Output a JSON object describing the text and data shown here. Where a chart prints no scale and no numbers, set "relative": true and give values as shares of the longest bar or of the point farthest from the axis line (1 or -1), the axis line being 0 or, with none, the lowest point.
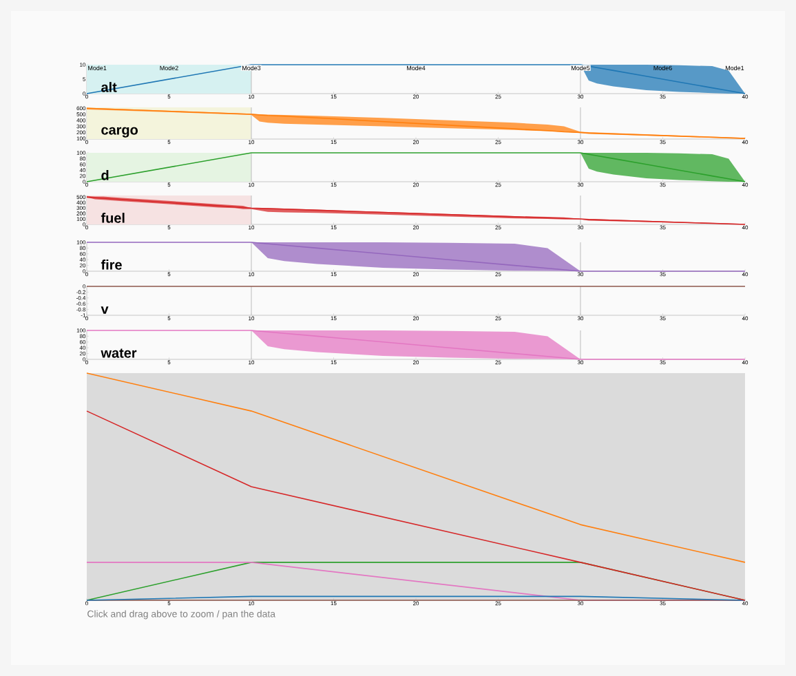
{
  "chart_data": [
    {
      "type": "line",
      "title": "alt",
      "xlim": [
        0,
        40
      ],
      "xticks": [
        0,
        5,
        10,
        15,
        20,
        25,
        30,
        35,
        40
      ],
      "ylim": [
        0,
        10
      ],
      "yticks": [
        0,
        5,
        10
      ],
      "series": [
        {
          "color": "#1f77b4",
          "x": [
            0,
            10,
            30,
            30.5,
            31,
            32,
            34,
            36,
            38,
            39,
            40
          ],
          "values": [
            0,
            10,
            10,
            9.5,
            9,
            8,
            6,
            4,
            2,
            1,
            0
          ],
          "upper": [
            null,
            null,
            10,
            10,
            10,
            10,
            10,
            9.8,
            9.5,
            8,
            0
          ],
          "lower": [
            null,
            null,
            10,
            4.5,
            3.5,
            2.5,
            1.2,
            0.6,
            0.2,
            0,
            0
          ]
        }
      ],
      "bands": [
        {
          "axis": "x",
          "from": 0,
          "to": 10,
          "color": "#d6f1f1"
        }
      ],
      "ref_lines": [
        {
          "axis": "x",
          "value": 10,
          "label": "Mode3"
        },
        {
          "axis": "x",
          "value": 30,
          "label": "Mode5"
        }
      ],
      "annotations": [
        "Mode1",
        "Mode2",
        "Mode4",
        "Mode6",
        "Mode1"
      ]
    },
    {
      "type": "line",
      "title": "cargo",
      "xlim": [
        0,
        40
      ],
      "xticks": [
        0,
        5,
        10,
        15,
        20,
        25,
        30,
        35,
        40
      ],
      "ylim": [
        90,
        615
      ],
      "yticks": [
        100,
        200,
        300,
        400,
        500,
        600
      ],
      "series": [
        {
          "color": "#ff7f0e",
          "x": [
            0,
            10,
            10.5,
            11,
            12,
            14,
            18,
            22,
            26,
            28,
            29,
            30,
            30.5,
            40
          ],
          "values": [
            600,
            500,
            490,
            480,
            470,
            440,
            380,
            320,
            260,
            230,
            210,
            200,
            190,
            100
          ],
          "upper": [
            610,
            510,
            500,
            495,
            490,
            475,
            440,
            400,
            360,
            330,
            300,
            210,
            205,
            110
          ],
          "lower": [
            580,
            490,
            380,
            360,
            345,
            330,
            300,
            270,
            240,
            220,
            210,
            190,
            175,
            95
          ]
        }
      ],
      "bands": [
        {
          "axis": "x",
          "from": 0,
          "to": 10,
          "color": "#f4f4dc"
        }
      ],
      "ref_lines": [
        {
          "axis": "x",
          "value": 10
        },
        {
          "axis": "x",
          "value": 30
        }
      ]
    },
    {
      "type": "line",
      "title": "d",
      "xlim": [
        0,
        40
      ],
      "xticks": [
        0,
        5,
        10,
        15,
        20,
        25,
        30,
        35,
        40
      ],
      "ylim": [
        0,
        100
      ],
      "yticks": [
        0,
        20,
        40,
        60,
        80,
        100
      ],
      "series": [
        {
          "color": "#2ca02c",
          "x": [
            0,
            10,
            30,
            30.5,
            31,
            32,
            34,
            36,
            38,
            39,
            40
          ],
          "values": [
            0,
            100,
            100,
            95,
            90,
            80,
            60,
            40,
            20,
            10,
            0
          ],
          "upper": [
            null,
            null,
            100,
            100,
            100,
            100,
            100,
            98,
            95,
            80,
            0
          ],
          "lower": [
            null,
            null,
            100,
            45,
            35,
            25,
            12,
            6,
            2,
            0,
            0
          ]
        }
      ],
      "bands": [
        {
          "axis": "x",
          "from": 0,
          "to": 10,
          "color": "#e5f4e2"
        }
      ],
      "ref_lines": [
        {
          "axis": "x",
          "value": 10
        },
        {
          "axis": "x",
          "value": 30
        }
      ]
    },
    {
      "type": "line",
      "title": "fuel",
      "xlim": [
        0,
        40
      ],
      "xticks": [
        0,
        5,
        10,
        15,
        20,
        25,
        30,
        35,
        40
      ],
      "ylim": [
        0,
        530
      ],
      "yticks": [
        0,
        100,
        200,
        300,
        400,
        500
      ],
      "series": [
        {
          "color": "#d62728",
          "x": [
            0,
            0.5,
            1,
            2,
            4,
            6,
            8,
            9,
            9.5,
            10,
            11,
            12,
            14,
            18,
            26,
            28,
            29,
            30,
            30.5,
            40
          ],
          "values": [
            500,
            490,
            480,
            460,
            420,
            380,
            340,
            320,
            310,
            300,
            290,
            280,
            260,
            220,
            140,
            120,
            110,
            100,
            90,
            0
          ],
          "upper": [
            520,
            510,
            510,
            490,
            450,
            410,
            370,
            350,
            340,
            300,
            300,
            290,
            270,
            230,
            150,
            140,
            130,
            100,
            100,
            10
          ],
          "lower": [
            500,
            460,
            450,
            430,
            390,
            350,
            310,
            300,
            280,
            280,
            230,
            220,
            210,
            180,
            110,
            100,
            90,
            90,
            70,
            0
          ]
        }
      ],
      "bands": [
        {
          "axis": "x",
          "from": 0,
          "to": 10,
          "color": "#f6e2e2"
        }
      ],
      "ref_lines": [
        {
          "axis": "x",
          "value": 10
        },
        {
          "axis": "x",
          "value": 30
        }
      ]
    },
    {
      "type": "line",
      "title": "fire",
      "xlim": [
        0,
        40
      ],
      "xticks": [
        0,
        5,
        10,
        15,
        20,
        25,
        30,
        35,
        40
      ],
      "ylim": [
        0,
        100
      ],
      "yticks": [
        0,
        20,
        40,
        60,
        80,
        100
      ],
      "series": [
        {
          "color": "#9467bd",
          "x": [
            0,
            10,
            11,
            12,
            14,
            18,
            22,
            26,
            28,
            30,
            40
          ],
          "values": [
            100,
            100,
            95,
            90,
            80,
            60,
            40,
            20,
            10,
            0,
            0
          ],
          "upper": [
            null,
            100,
            100,
            100,
            100,
            100,
            98,
            95,
            80,
            0,
            null
          ],
          "lower": [
            null,
            100,
            45,
            35,
            25,
            12,
            6,
            2,
            1,
            0,
            null
          ]
        }
      ],
      "ref_lines": [
        {
          "axis": "x",
          "value": 10
        },
        {
          "axis": "x",
          "value": 30
        }
      ]
    },
    {
      "type": "line",
      "title": "v",
      "xlim": [
        0,
        40
      ],
      "xticks": [
        0,
        5,
        10,
        15,
        20,
        25,
        30,
        35,
        40
      ],
      "ylim": [
        -1,
        0
      ],
      "yticks": [
        -1,
        -0.8,
        -0.6,
        -0.4,
        -0.2,
        0
      ],
      "series": [
        {
          "color": "#8c564b",
          "x": [
            0,
            40
          ],
          "values": [
            0,
            0
          ]
        }
      ],
      "ref_lines": [
        {
          "axis": "x",
          "value": 10
        },
        {
          "axis": "x",
          "value": 30
        }
      ]
    },
    {
      "type": "line",
      "title": "water",
      "xlim": [
        0,
        40
      ],
      "xticks": [
        0,
        5,
        10,
        15,
        20,
        25,
        30,
        35,
        40
      ],
      "ylim": [
        0,
        100
      ],
      "yticks": [
        0,
        20,
        40,
        60,
        80,
        100
      ],
      "series": [
        {
          "color": "#e377c2",
          "x": [
            0,
            10,
            11,
            12,
            14,
            18,
            22,
            26,
            28,
            30,
            40
          ],
          "values": [
            100,
            100,
            95,
            90,
            80,
            60,
            40,
            20,
            10,
            0,
            0
          ],
          "upper": [
            null,
            100,
            100,
            100,
            100,
            100,
            98,
            95,
            80,
            0,
            null
          ],
          "lower": [
            null,
            100,
            45,
            35,
            25,
            12,
            6,
            2,
            1,
            0,
            null
          ]
        }
      ],
      "ref_lines": [
        {
          "axis": "x",
          "value": 10
        },
        {
          "axis": "x",
          "value": 30
        }
      ]
    },
    {
      "type": "line",
      "relative": true,
      "xlim": [
        0,
        40
      ],
      "xticks": [
        0,
        5,
        10,
        15,
        20,
        25,
        30,
        35,
        40
      ],
      "series": [
        {
          "color": "#ff7f0e",
          "x": [
            0,
            10,
            30,
            40
          ],
          "values": [
            1,
            0.833,
            0.333,
            0.167
          ]
        },
        {
          "color": "#d62728",
          "x": [
            0,
            10,
            30,
            40
          ],
          "values": [
            0.833,
            0.5,
            0.167,
            0
          ]
        },
        {
          "color": "#2ca02c",
          "x": [
            0,
            10,
            30,
            40
          ],
          "values": [
            0,
            0.167,
            0.167,
            0
          ]
        },
        {
          "color": "#e377c2",
          "x": [
            0,
            10,
            30,
            40
          ],
          "values": [
            0.167,
            0.167,
            0,
            0
          ]
        },
        {
          "color": "#8c564b",
          "x": [
            0,
            40
          ],
          "values": [
            0,
            0
          ]
        },
        {
          "color": "#1f77b4",
          "x": [
            0,
            10,
            30,
            40
          ],
          "values": [
            0,
            0.017,
            0.017,
            0
          ]
        }
      ],
      "annotations": [
        "Click and drag above to zoom / pan the data"
      ]
    }
  ]
}
